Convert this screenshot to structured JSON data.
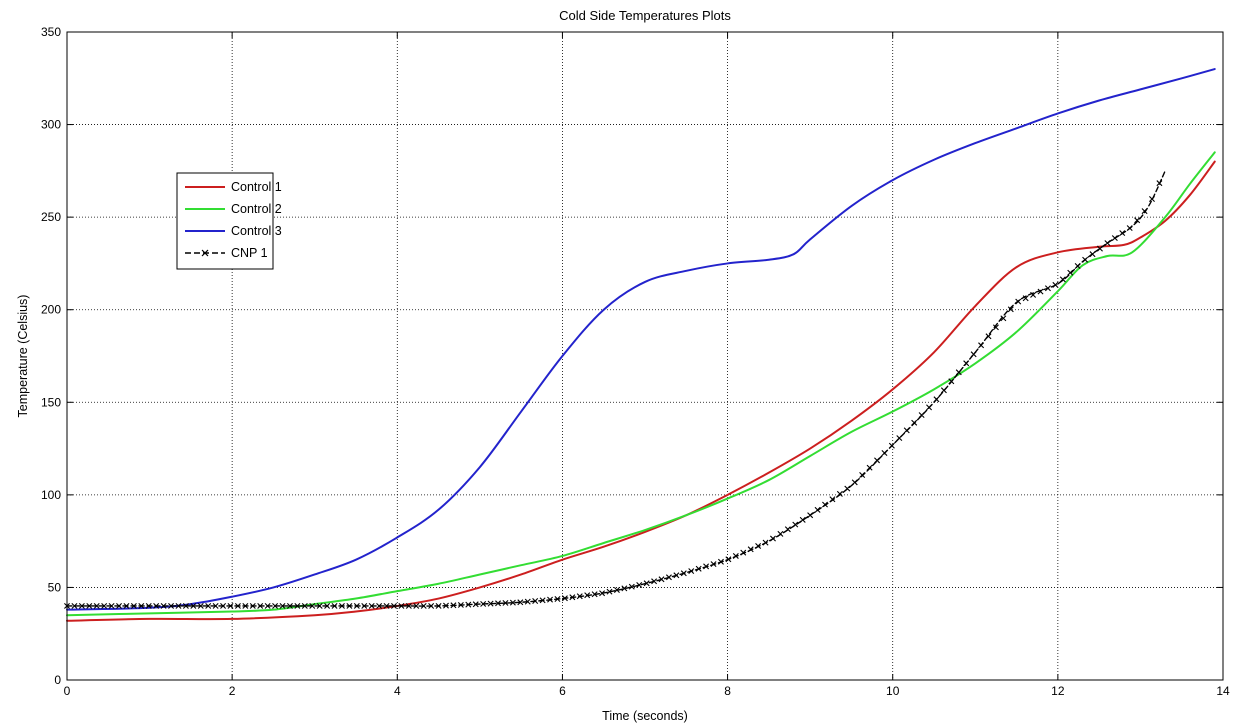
{
  "chart_data": {
    "type": "line",
    "title": "Cold Side Temperatures Plots",
    "xlabel": "Time (seconds)",
    "ylabel": "Temperature (Celsius)",
    "xlim": [
      0,
      14
    ],
    "ylim": [
      0,
      350
    ],
    "xticks": [
      0,
      2,
      4,
      6,
      8,
      10,
      12,
      14
    ],
    "yticks": [
      0,
      50,
      100,
      150,
      200,
      250,
      300,
      350
    ],
    "grid": true,
    "legend_position": "upper-left",
    "series": [
      {
        "name": "Control 1",
        "color": "#cc1f1f",
        "style": "solid",
        "x": [
          0,
          1,
          2,
          3,
          3.5,
          4,
          4.5,
          5,
          5.5,
          6,
          6.5,
          7,
          7.5,
          8,
          8.5,
          9,
          9.5,
          10,
          10.5,
          11,
          11.5,
          12,
          12.5,
          12.8,
          13,
          13.3,
          13.6,
          13.9
        ],
        "values": [
          32,
          33,
          33,
          35,
          37,
          40,
          44,
          50,
          57,
          65,
          72,
          80,
          89,
          100,
          112,
          125,
          140,
          157,
          177,
          202,
          223,
          231,
          234,
          235,
          239,
          248,
          262,
          280
        ]
      },
      {
        "name": "Control 2",
        "color": "#33dd33",
        "style": "solid",
        "x": [
          0,
          1,
          2,
          2.5,
          3,
          3.5,
          4,
          4.5,
          5,
          5.5,
          6,
          6.5,
          7,
          7.5,
          8,
          8.5,
          9,
          9.5,
          10,
          10.5,
          11,
          11.5,
          12,
          12.3,
          12.6,
          12.9,
          13.3,
          13.6,
          13.9
        ],
        "values": [
          35,
          36,
          37,
          38,
          41,
          44,
          48,
          52,
          57,
          62,
          67,
          74,
          81,
          89,
          98,
          108,
          121,
          134,
          145,
          157,
          171,
          188,
          210,
          224,
          229,
          231,
          250,
          268,
          285
        ]
      },
      {
        "name": "Control 3",
        "color": "#2323cc",
        "style": "solid",
        "x": [
          0,
          1,
          1.5,
          2,
          2.5,
          3,
          3.5,
          4,
          4.5,
          5,
          5.5,
          6,
          6.5,
          7,
          7.5,
          8,
          8.5,
          8.8,
          9,
          9.5,
          10,
          10.5,
          11,
          11.5,
          12,
          12.5,
          13,
          13.5,
          13.9
        ],
        "values": [
          38,
          39,
          41,
          45,
          50,
          57,
          65,
          77,
          92,
          115,
          145,
          175,
          200,
          215,
          221,
          225,
          227,
          230,
          238,
          256,
          270,
          281,
          290,
          298,
          306,
          313,
          319,
          325,
          330
        ]
      },
      {
        "name": "CNP 1",
        "color": "#000000",
        "style": "dashed-x",
        "x": [
          0,
          1,
          2,
          3,
          4,
          4.5,
          5,
          5.5,
          6,
          6.5,
          7,
          7.5,
          8,
          8.5,
          9,
          9.5,
          10,
          10.5,
          11,
          11.5,
          12,
          12.3,
          12.6,
          12.9,
          13.1,
          13.3
        ],
        "values": [
          40,
          40,
          40,
          40,
          40,
          40,
          41,
          42,
          44,
          47,
          52,
          58,
          65,
          75,
          89,
          105,
          127,
          150,
          177,
          204,
          214,
          226,
          236,
          245,
          256,
          275
        ]
      }
    ]
  }
}
